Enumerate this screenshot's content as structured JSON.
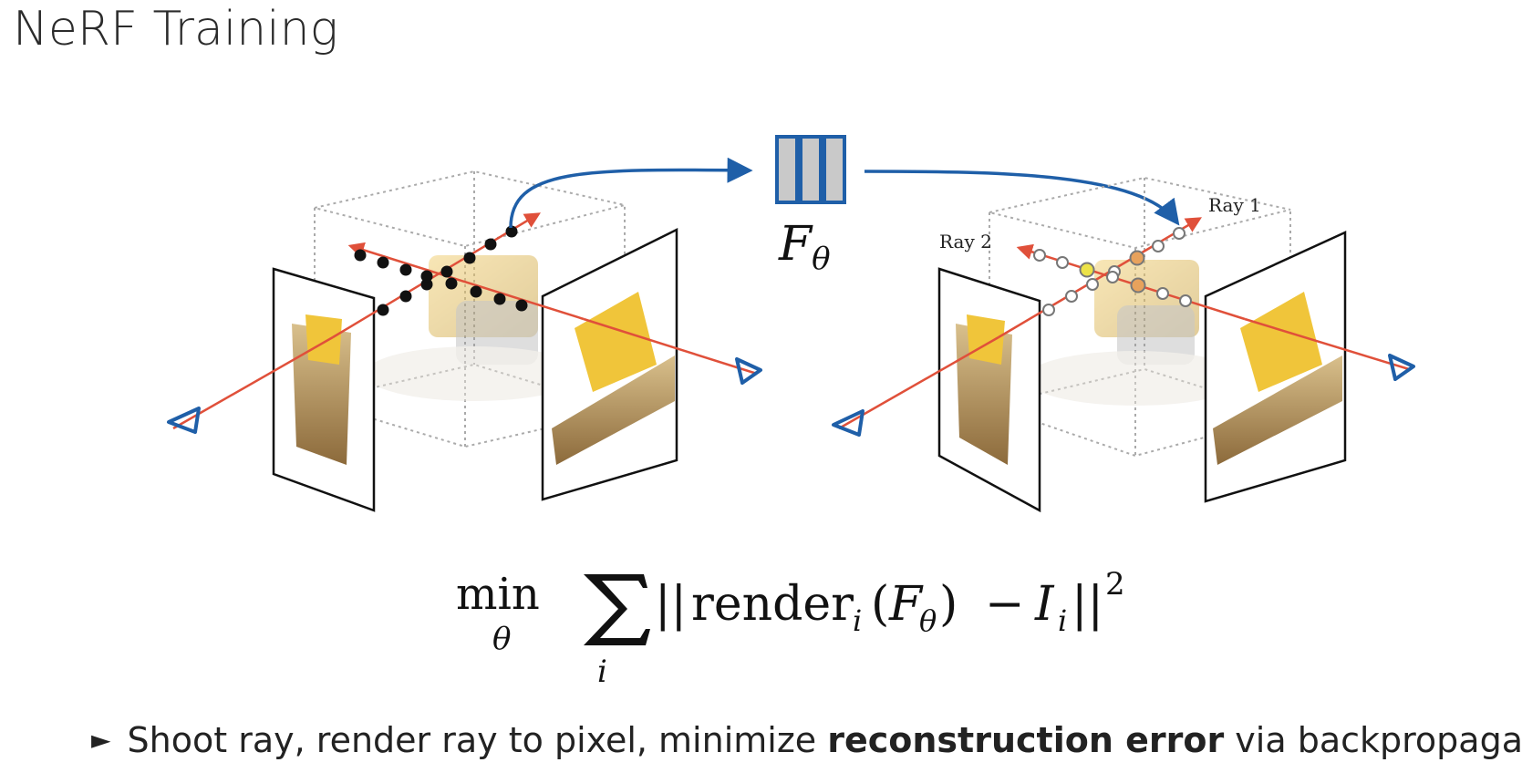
{
  "title": "NeRF Training",
  "network_label_main": "F",
  "network_label_sub": "θ",
  "ray1_label": "Ray 1",
  "ray2_label": "Ray 2",
  "equation": {
    "min": "min",
    "min_sub": "θ",
    "sum_sub": "i",
    "bars_open": "||",
    "render": "render",
    "render_sub": "i",
    "paren_open": "(",
    "f": "F",
    "f_sub": "θ",
    "paren_close": ")",
    "minus": "−",
    "I": "I",
    "I_sub": "i",
    "bars_close": "||",
    "sq": "2"
  },
  "bullet": {
    "marker": "►",
    "before": "Shoot ray, render ray to pixel, minimize ",
    "bold": "reconstruction error",
    "after": " via backpropagation"
  },
  "colors": {
    "ray": "#e0503a",
    "camera": "#1f5fa8",
    "arrow": "#1f5fa8",
    "network": "#c9c9c9",
    "box": "#aaaaaa"
  }
}
